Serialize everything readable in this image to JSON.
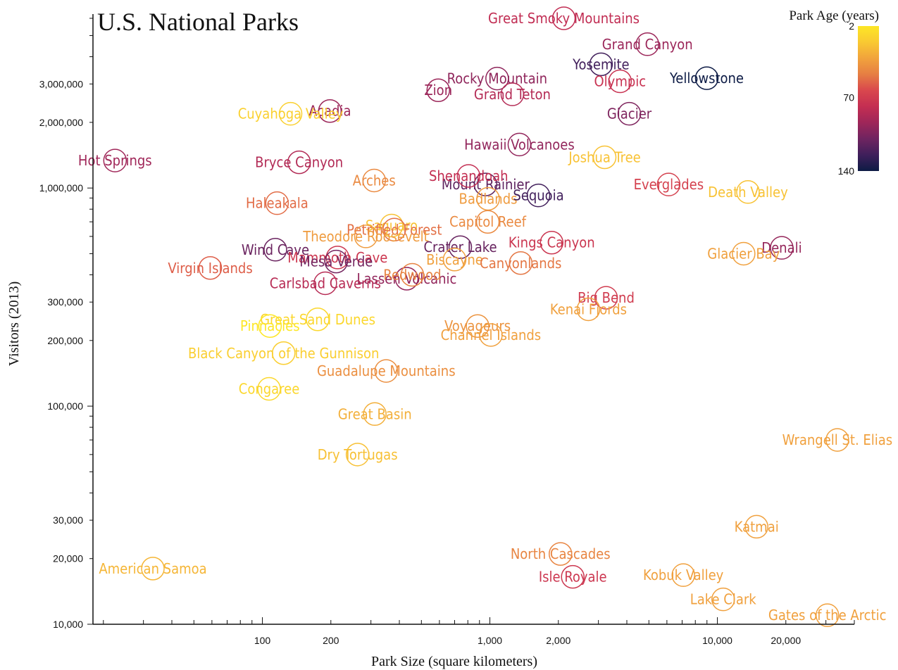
{
  "chart_data": {
    "type": "scatter",
    "title": "U.S. National Parks",
    "xlabel": "Park Size (square kilometers)",
    "ylabel": "Visitors (2013)",
    "x_scale": "log",
    "y_scale": "log",
    "xlim": [
      18,
      40000
    ],
    "ylim": [
      10000,
      6000000
    ],
    "x_ticks": [
      {
        "value": 100,
        "label": "100"
      },
      {
        "value": 200,
        "label": "200"
      },
      {
        "value": 1000,
        "label": "1,000"
      },
      {
        "value": 2000,
        "label": "2,000"
      },
      {
        "value": 10000,
        "label": "10,000"
      },
      {
        "value": 20000,
        "label": "20,000"
      }
    ],
    "y_ticks": [
      {
        "value": 10000,
        "label": "10,000"
      },
      {
        "value": 20000,
        "label": "20,000"
      },
      {
        "value": 30000,
        "label": "30,000"
      },
      {
        "value": 100000,
        "label": "100,000"
      },
      {
        "value": 200000,
        "label": "200,000"
      },
      {
        "value": 300000,
        "label": "300,000"
      },
      {
        "value": 1000000,
        "label": "1,000,000"
      },
      {
        "value": 2000000,
        "label": "2,000,000"
      },
      {
        "value": 3000000,
        "label": "3,000,000"
      }
    ],
    "grid": false,
    "legend": {
      "title": "Park Age (years)",
      "placement": "top-right",
      "ticks": [
        {
          "value": 2,
          "label": "2"
        },
        {
          "value": 70,
          "label": "70"
        },
        {
          "value": 140,
          "label": "140"
        }
      ],
      "range": [
        2,
        140
      ],
      "colors": [
        "#fde725",
        "#f9c932",
        "#f1a33c",
        "#e67e43",
        "#d9474d",
        "#c42e52",
        "#9e2659",
        "#6f2460",
        "#3f1f5b",
        "#0d1b45"
      ]
    },
    "points": [
      {
        "name": "Great Smoky Mountains",
        "size": 2114,
        "visitors": 9354695,
        "age": 80
      },
      {
        "name": "Grand Canyon",
        "size": 4926,
        "visitors": 4564840,
        "age": 95
      },
      {
        "name": "Yosemite",
        "size": 3081,
        "visitors": 3691191,
        "age": 124
      },
      {
        "name": "Yellowstone",
        "size": 8983,
        "visitors": 3188030,
        "age": 142
      },
      {
        "name": "Olympic",
        "size": 3734,
        "visitors": 3085340,
        "age": 76
      },
      {
        "name": "Rocky Mountain",
        "size": 1076,
        "visitors": 3176941,
        "age": 99
      },
      {
        "name": "Zion",
        "size": 593,
        "visitors": 2807387,
        "age": 95
      },
      {
        "name": "Grand Teton",
        "size": 1255,
        "visitors": 2688794,
        "age": 85
      },
      {
        "name": "Glacier",
        "size": 4101,
        "visitors": 2190374,
        "age": 104
      },
      {
        "name": "Acadia",
        "size": 198,
        "visitors": 2254922,
        "age": 95
      },
      {
        "name": "Cuyahoga Valley",
        "size": 133,
        "visitors": 2189849,
        "age": 14
      },
      {
        "name": "Hawaii Volcanoes",
        "size": 1348,
        "visitors": 1583209,
        "age": 98
      },
      {
        "name": "Joshua Tree",
        "size": 3196,
        "visitors": 1383340,
        "age": 20
      },
      {
        "name": "Hot Springs",
        "size": 22.5,
        "visitors": 1336943,
        "age": 93
      },
      {
        "name": "Bryce Canyon",
        "size": 145,
        "visitors": 1311875,
        "age": 86
      },
      {
        "name": "Mount Rainier",
        "size": 957,
        "visitors": 1038229,
        "age": 115
      },
      {
        "name": "Arches",
        "size": 310,
        "visitors": 1082866,
        "age": 43
      },
      {
        "name": "Everglades",
        "size": 6107,
        "visitors": 1037896,
        "age": 67
      },
      {
        "name": "Shenandoah",
        "size": 806,
        "visitors": 1136505,
        "age": 79
      },
      {
        "name": "Death Valley",
        "size": 13628,
        "visitors": 958934,
        "age": 20
      },
      {
        "name": "Saguaro",
        "size": 370,
        "visitors": 672946,
        "age": 20
      },
      {
        "name": "Badlands",
        "size": 982,
        "visitors": 892372,
        "age": 36
      },
      {
        "name": "Sequoia",
        "size": 1635,
        "visitors": 925000,
        "age": 124
      },
      {
        "name": "Haleakala",
        "size": 116,
        "visitors": 852360,
        "age": 53
      },
      {
        "name": "Petrified Forest",
        "size": 380,
        "visitors": 644678,
        "age": 52
      },
      {
        "name": "Capitol Reef",
        "size": 979,
        "visitors": 699690,
        "age": 43
      },
      {
        "name": "Theodore Roosevelt",
        "size": 285,
        "visitors": 600000,
        "age": 36
      },
      {
        "name": "Crater Lake",
        "size": 741,
        "visitors": 535508,
        "age": 112
      },
      {
        "name": "Wind Cave",
        "size": 114,
        "visitors": 521547,
        "age": 111
      },
      {
        "name": "Kings Canyon",
        "size": 1869,
        "visitors": 561998,
        "age": 74
      },
      {
        "name": "Denali",
        "size": 19186,
        "visitors": 531770,
        "age": 97
      },
      {
        "name": "Mammoth Cave",
        "size": 214,
        "visitors": 480411,
        "age": 73
      },
      {
        "name": "Biscayne",
        "size": 700,
        "visitors": 470000,
        "age": 34
      },
      {
        "name": "Glacier Bay",
        "size": 13045,
        "visitors": 500000,
        "age": 34
      },
      {
        "name": "Virgin Islands",
        "size": 59,
        "visitors": 430000,
        "age": 57
      },
      {
        "name": "Canyonlands",
        "size": 1366,
        "visitors": 452952,
        "age": 50
      },
      {
        "name": "Mesa Verde",
        "size": 211,
        "visitors": 460237,
        "age": 108
      },
      {
        "name": "Lassen Volcanic",
        "size": 431,
        "visitors": 384000,
        "age": 98
      },
      {
        "name": "Carlsbad Caverns",
        "size": 189,
        "visitors": 366000,
        "age": 84
      },
      {
        "name": "Redwood",
        "size": 456,
        "visitors": 400000,
        "age": 46
      },
      {
        "name": "Big Bend",
        "size": 3242,
        "visitors": 314000,
        "age": 70
      },
      {
        "name": "Kenai Fjords",
        "size": 2711,
        "visitors": 278000,
        "age": 34
      },
      {
        "name": "Great Sand Dunes",
        "size": 175,
        "visitors": 250000,
        "age": 10
      },
      {
        "name": "Voyageurs",
        "size": 883,
        "visitors": 233000,
        "age": 39
      },
      {
        "name": "Pinnacles",
        "size": 108,
        "visitors": 233000,
        "age": 2
      },
      {
        "name": "Channel Islands",
        "size": 1010,
        "visitors": 212000,
        "age": 34
      },
      {
        "name": "Black Canyon of the Gunnison",
        "size": 124,
        "visitors": 175000,
        "age": 15
      },
      {
        "name": "Guadalupe Mountains",
        "size": 350,
        "visitors": 145000,
        "age": 41
      },
      {
        "name": "Congaree",
        "size": 107,
        "visitors": 120000,
        "age": 10
      },
      {
        "name": "Great Basin",
        "size": 312,
        "visitors": 92000,
        "age": 28
      },
      {
        "name": "Wrangell St. Elias",
        "size": 33682,
        "visitors": 70000,
        "age": 34
      },
      {
        "name": "Dry Tortugas",
        "size": 262,
        "visitors": 60000,
        "age": 21
      },
      {
        "name": "Katmai",
        "size": 14870,
        "visitors": 28000,
        "age": 34
      },
      {
        "name": "North Cascades",
        "size": 2043,
        "visitors": 21000,
        "age": 45
      },
      {
        "name": "American Samoa",
        "size": 33,
        "visitors": 18000,
        "age": 25
      },
      {
        "name": "Kobuk Valley",
        "size": 7085,
        "visitors": 16800,
        "age": 34
      },
      {
        "name": "Isle Royale",
        "size": 2314,
        "visitors": 16500,
        "age": 73
      },
      {
        "name": "Lake Clark",
        "size": 10602,
        "visitors": 13000,
        "age": 34
      },
      {
        "name": "Gates of the Arctic",
        "size": 30448,
        "visitors": 11000,
        "age": 34
      }
    ]
  }
}
